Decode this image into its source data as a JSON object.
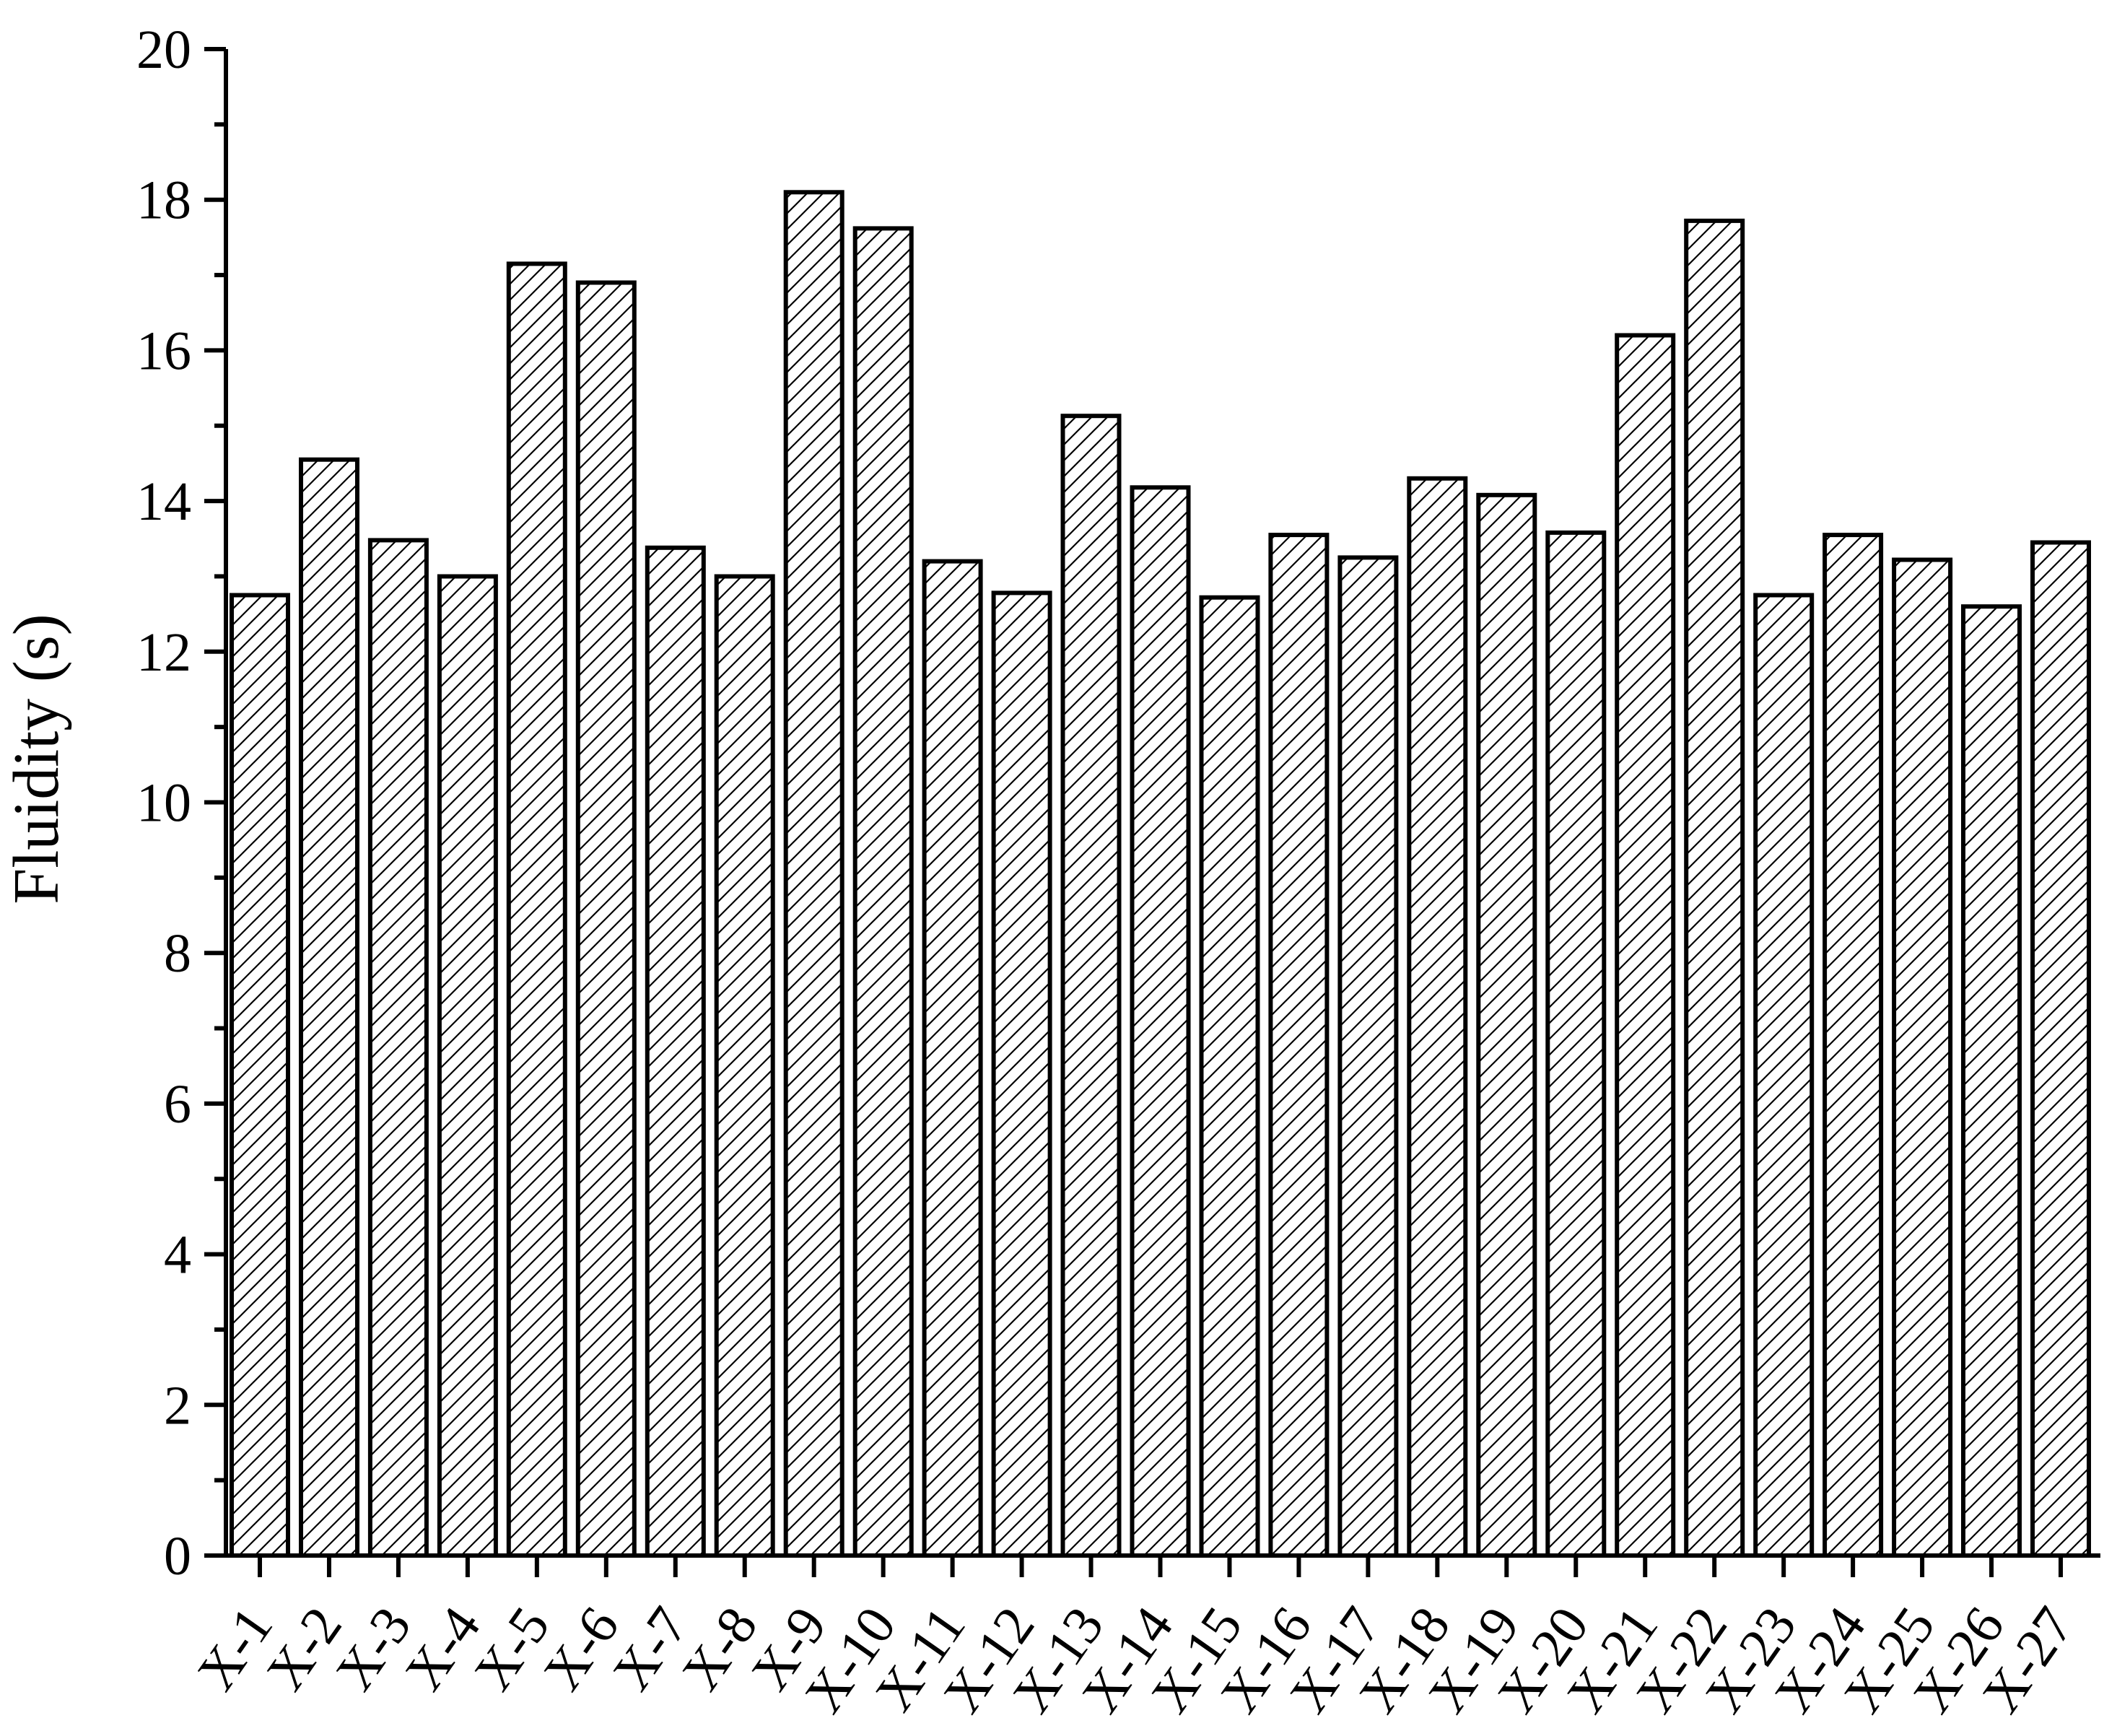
{
  "chart_data": {
    "type": "bar",
    "title": "",
    "xlabel": "",
    "ylabel": "Fluidity (s)",
    "ylim": [
      0,
      20
    ],
    "yticks": [
      0,
      2,
      4,
      6,
      8,
      10,
      12,
      14,
      16,
      18,
      20
    ],
    "yminor_step": 1,
    "grid": false,
    "legend": "none",
    "bar_pattern": "diagonal-hatch",
    "categories": [
      "X-1",
      "X-2",
      "X-3",
      "X-4",
      "X-5",
      "X-6",
      "X-7",
      "X-8",
      "X-9",
      "X-10",
      "X-11",
      "X-12",
      "X-13",
      "X-14",
      "X-15",
      "X-16",
      "X-17",
      "X-18",
      "X-19",
      "X-20",
      "X-21",
      "X-22",
      "X-23",
      "X-24",
      "X-25",
      "X-26",
      "X-27"
    ],
    "values": [
      12.75,
      14.55,
      13.48,
      13.0,
      17.15,
      16.9,
      13.38,
      13.0,
      18.1,
      17.62,
      13.2,
      12.78,
      15.13,
      14.18,
      12.72,
      13.55,
      13.25,
      14.3,
      14.08,
      13.58,
      16.2,
      17.72,
      12.75,
      13.55,
      13.22,
      12.6,
      13.45
    ]
  }
}
